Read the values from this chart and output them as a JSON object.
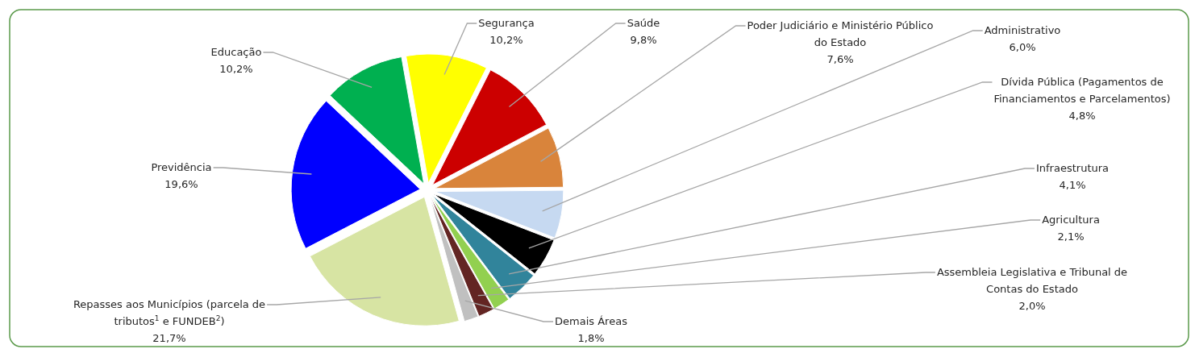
{
  "chart_data": {
    "type": "pie",
    "categories": [
      "Segurança",
      "Saúde",
      "Poder Judiciário e Ministério Público do Estado",
      "Administrativo",
      "Dívida Pública (Pagamentos de Financiamentos e Parcelamentos)",
      "Infraestrutura",
      "Agricultura",
      "Assembleia Legislativa e Tribunal de Contas do Estado",
      "Demais Áreas",
      "Repasses aos Municípios (parcela de tributos$^{1}$ e FUNDEB$^{2}$)",
      "Previdência",
      "Educação"
    ],
    "values": [
      10.2,
      9.8,
      7.6,
      6.0,
      4.8,
      4.1,
      2.1,
      2.0,
      1.8,
      21.7,
      19.6,
      10.2
    ],
    "colors": [
      "#ffff00",
      "#cc0000",
      "#d9843b",
      "#c6d9f1",
      "#000000",
      "#31849b",
      "#92d050",
      "#632523",
      "#c0c0c0",
      "#d7e4a3",
      "#0000ff",
      "#00b050"
    ],
    "value_labels": [
      "10,2%",
      "9,8%",
      "7,6%",
      "6,0%",
      "4,8%",
      "4,1%",
      "2,1%",
      "2,0%",
      "1,8%",
      "21,7%",
      "19,6%",
      "10,2%"
    ]
  }
}
